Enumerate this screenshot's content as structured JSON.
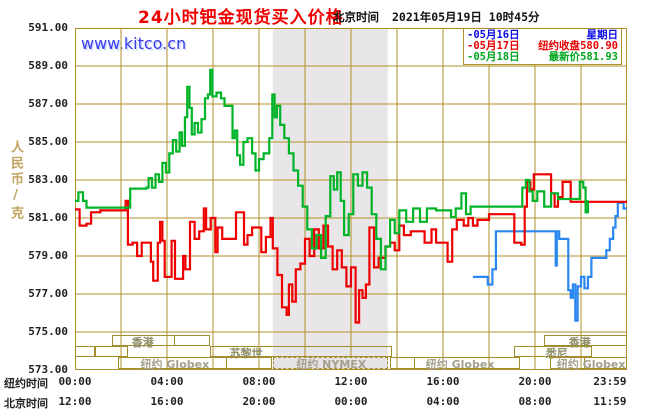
{
  "header": {
    "title": "24小时钯金现货买入价格",
    "clock_label": "北京时间",
    "clock_value": "2021年05月19日 10时45分"
  },
  "watermark": "www.kitco.cn",
  "y_axis": {
    "unit": "人民币/克",
    "labels": [
      "591.00",
      "589.00",
      "587.00",
      "585.00",
      "583.00",
      "581.00",
      "579.00",
      "577.00",
      "575.00",
      "573.00"
    ]
  },
  "x_axis": {
    "ny_label": "纽约时间",
    "bj_label": "北京时间",
    "tick_hours": [
      0,
      4,
      8,
      12,
      16,
      20,
      23.26
    ],
    "ny_ticks": [
      "00:00",
      "04:00",
      "08:00",
      "12:00",
      "16:00",
      "20:00",
      "23:59"
    ],
    "bj_ticks": [
      "12:00",
      "16:00",
      "20:00",
      "00:00",
      "04:00",
      "08:00",
      "11:59"
    ]
  },
  "legend": {
    "items": [
      {
        "dash": "-",
        "date": "05月16日",
        "desc": "星期日",
        "value": "",
        "color": "#0a0ae6"
      },
      {
        "dash": "-",
        "date": "05月17日",
        "desc": "纽约收盘",
        "value": "580.90",
        "color": "#e60000"
      },
      {
        "dash": "-",
        "date": "05月18日",
        "desc": "最新价",
        "value": "581.93",
        "color": "#00a61f"
      }
    ]
  },
  "sessions": [
    {
      "row": 1,
      "start": 1.6,
      "end": 5.87,
      "label": "香港",
      "label_at": 2.9,
      "label_color": "#8d8d66",
      "dividers": [
        4.26
      ]
    },
    {
      "row": 1,
      "start": 20.4,
      "end": 24,
      "label": "香港",
      "label_at": 21.9,
      "label_color": "#8d8d66"
    },
    {
      "row": 2,
      "start": 0,
      "end": 0.87
    },
    {
      "row": 2,
      "start": 0.87,
      "end": 2.3
    },
    {
      "row": 2,
      "start": 5.87,
      "end": 13.8,
      "label": "苏黎世",
      "label_at": 7.4,
      "label_color": "#8d8d66"
    },
    {
      "row": 2,
      "start": 19.1,
      "end": 22.5,
      "label": "悉尼",
      "label_at": 20.9,
      "label_color": "#8d8d66"
    },
    {
      "row": 3,
      "start": 1.87,
      "end": 8.57,
      "label": "纽约 Globex",
      "label_at": 4.3,
      "label_color": "#a3a08e",
      "dividers": [
        6.52
      ]
    },
    {
      "row": 3,
      "start": 8.6,
      "end": 13.6,
      "label": "纽约 NYMEX",
      "label_at": 11.1,
      "label_color": "#a3a08e",
      "fill": "#e6e3e6",
      "dashed": true
    },
    {
      "row": 3,
      "start": 13.7,
      "end": 19.35,
      "label": "纽约 Globex",
      "label_at": 16.7,
      "label_color": "#a3a08e",
      "dividers": [
        14.7
      ]
    },
    {
      "row": 3,
      "start": 20.65,
      "end": 24,
      "label": "纽约 Globex",
      "label_at": 22.4,
      "label_color": "#a3a08e",
      "dividers": [
        22.1
      ]
    }
  ],
  "chart_data": {
    "type": "line",
    "title": "24小时钯金现货买入价格",
    "xlabel": "纽约时间 (hours 0-24)",
    "ylabel": "人民币/克",
    "x_range": [
      0,
      24
    ],
    "y_range": [
      573,
      591
    ],
    "y_tick_step": 2,
    "x_grid_step_hours": 2,
    "grid": true,
    "grid_color": "#b2902c",
    "legend_position": "top-right",
    "band": {
      "from_hour": 8.6,
      "to_hour": 13.6,
      "color": "#e9e6e9",
      "note": "纽约NYMEX session shading"
    },
    "series": [
      {
        "name": "05月16日",
        "desc": "星期日",
        "color": "#2b87f0",
        "style": "step",
        "points": [
          [
            17.3,
            577.9
          ],
          [
            17.85,
            577.9
          ],
          [
            17.95,
            577.5
          ],
          [
            18.15,
            578.3
          ],
          [
            18.3,
            580.3
          ],
          [
            20.85,
            580.3
          ],
          [
            20.9,
            578.5
          ],
          [
            20.95,
            580.3
          ],
          [
            21.05,
            579.9
          ],
          [
            21.35,
            579.9
          ],
          [
            21.45,
            577.2
          ],
          [
            21.55,
            576.8
          ],
          [
            21.65,
            577.5
          ],
          [
            21.75,
            575.6
          ],
          [
            21.85,
            577.4
          ],
          [
            22.0,
            577.9
          ],
          [
            22.15,
            577.3
          ],
          [
            22.3,
            577.9
          ],
          [
            22.45,
            578.9
          ],
          [
            22.95,
            578.9
          ],
          [
            23.1,
            579.3
          ],
          [
            23.25,
            579.9
          ],
          [
            23.4,
            580.5
          ],
          [
            23.5,
            581.1
          ],
          [
            23.6,
            581.8
          ],
          [
            23.75,
            581.8
          ],
          [
            23.85,
            581.5
          ],
          [
            24.0,
            581.5
          ]
        ]
      },
      {
        "name": "05月17日",
        "desc": "纽约收盘 580.90",
        "color": "#ee0000",
        "style": "step",
        "points": [
          [
            0.0,
            581.45
          ],
          [
            0.2,
            580.6
          ],
          [
            0.5,
            580.7
          ],
          [
            0.7,
            581.3
          ],
          [
            1.1,
            581.4
          ],
          [
            2.1,
            581.4
          ],
          [
            2.2,
            581.9
          ],
          [
            2.3,
            579.6
          ],
          [
            2.5,
            579.7
          ],
          [
            2.7,
            579.0
          ],
          [
            2.9,
            579.7
          ],
          [
            3.2,
            579.7
          ],
          [
            3.3,
            578.7
          ],
          [
            3.4,
            577.7
          ],
          [
            3.6,
            579.7
          ],
          [
            3.7,
            580.8
          ],
          [
            3.8,
            579.8
          ],
          [
            3.9,
            577.9
          ],
          [
            4.1,
            577.9
          ],
          [
            4.2,
            579.8
          ],
          [
            4.35,
            577.8
          ],
          [
            4.6,
            577.8
          ],
          [
            4.7,
            579.0
          ],
          [
            4.8,
            578.3
          ],
          [
            5.0,
            580.8
          ],
          [
            5.2,
            579.9
          ],
          [
            5.4,
            580.3
          ],
          [
            5.6,
            581.5
          ],
          [
            5.7,
            580.4
          ],
          [
            5.9,
            581.0
          ],
          [
            6.1,
            579.2
          ],
          [
            6.2,
            580.5
          ],
          [
            6.4,
            579.9
          ],
          [
            6.8,
            579.9
          ],
          [
            7.0,
            581.3
          ],
          [
            7.2,
            581.3
          ],
          [
            7.35,
            579.6
          ],
          [
            7.5,
            580.1
          ],
          [
            7.7,
            580.5
          ],
          [
            7.9,
            580.5
          ],
          [
            8.1,
            579.2
          ],
          [
            8.3,
            580.0
          ],
          [
            8.5,
            581.0
          ],
          [
            8.6,
            579.4
          ],
          [
            8.8,
            578.0
          ],
          [
            9.0,
            576.3
          ],
          [
            9.2,
            575.9
          ],
          [
            9.3,
            577.5
          ],
          [
            9.45,
            576.6
          ],
          [
            9.6,
            578.3
          ],
          [
            9.8,
            578.6
          ],
          [
            10.0,
            579.9
          ],
          [
            10.2,
            579.0
          ],
          [
            10.4,
            580.4
          ],
          [
            10.6,
            579.4
          ],
          [
            10.8,
            580.6
          ],
          [
            11.0,
            579.5
          ],
          [
            11.2,
            578.3
          ],
          [
            11.4,
            579.3
          ],
          [
            11.6,
            578.4
          ],
          [
            11.8,
            577.4
          ],
          [
            12.0,
            578.4
          ],
          [
            12.2,
            575.5
          ],
          [
            12.35,
            577.2
          ],
          [
            12.5,
            576.8
          ],
          [
            12.65,
            577.5
          ],
          [
            12.8,
            580.5
          ],
          [
            13.0,
            578.4
          ],
          [
            13.2,
            578.9
          ],
          [
            13.5,
            579.5
          ],
          [
            13.7,
            579.7
          ],
          [
            13.9,
            579.3
          ],
          [
            14.1,
            580.6
          ],
          [
            14.3,
            580.1
          ],
          [
            14.6,
            580.3
          ],
          [
            15.0,
            580.3
          ],
          [
            15.2,
            579.7
          ],
          [
            15.5,
            580.4
          ],
          [
            15.7,
            579.7
          ],
          [
            16.0,
            579.7
          ],
          [
            16.2,
            578.7
          ],
          [
            16.4,
            580.4
          ],
          [
            16.6,
            580.9
          ],
          [
            16.9,
            580.6
          ],
          [
            17.1,
            581.0
          ],
          [
            17.3,
            580.6
          ],
          [
            17.5,
            580.9
          ],
          [
            18.0,
            581.2
          ],
          [
            18.9,
            581.2
          ],
          [
            19.1,
            579.7
          ],
          [
            19.4,
            579.6
          ],
          [
            19.55,
            581.6
          ],
          [
            19.65,
            582.9
          ],
          [
            19.8,
            582.5
          ],
          [
            19.95,
            583.3
          ],
          [
            20.5,
            583.3
          ],
          [
            20.7,
            582.3
          ],
          [
            20.85,
            581.6
          ],
          [
            21.0,
            582.1
          ],
          [
            21.2,
            582.9
          ],
          [
            21.4,
            582.9
          ],
          [
            21.55,
            581.85
          ],
          [
            24.0,
            581.85
          ]
        ]
      },
      {
        "name": "05月18日",
        "desc": "最新价 581.93",
        "color": "#00b428",
        "style": "step",
        "points": [
          [
            0.0,
            581.9
          ],
          [
            0.15,
            582.35
          ],
          [
            0.35,
            581.9
          ],
          [
            0.5,
            581.55
          ],
          [
            2.3,
            581.55
          ],
          [
            2.4,
            582.55
          ],
          [
            3.1,
            582.6
          ],
          [
            3.2,
            583.1
          ],
          [
            3.35,
            582.6
          ],
          [
            3.5,
            583.3
          ],
          [
            3.65,
            582.9
          ],
          [
            3.8,
            583.9
          ],
          [
            3.95,
            583.4
          ],
          [
            4.1,
            584.4
          ],
          [
            4.25,
            585.1
          ],
          [
            4.4,
            584.5
          ],
          [
            4.55,
            585.5
          ],
          [
            4.65,
            584.8
          ],
          [
            4.78,
            586.3
          ],
          [
            4.88,
            587.9
          ],
          [
            4.98,
            586.8
          ],
          [
            5.08,
            585.4
          ],
          [
            5.2,
            586.0
          ],
          [
            5.35,
            585.5
          ],
          [
            5.5,
            586.2
          ],
          [
            5.65,
            587.3
          ],
          [
            5.78,
            587.5
          ],
          [
            5.88,
            588.8
          ],
          [
            5.98,
            587.4
          ],
          [
            6.15,
            587.6
          ],
          [
            6.35,
            587.3
          ],
          [
            6.5,
            586.9
          ],
          [
            6.75,
            586.9
          ],
          [
            6.85,
            585.2
          ],
          [
            6.95,
            585.6
          ],
          [
            7.05,
            584.3
          ],
          [
            7.18,
            583.8
          ],
          [
            7.32,
            585.0
          ],
          [
            7.5,
            585.2
          ],
          [
            7.7,
            584.4
          ],
          [
            7.85,
            583.5
          ],
          [
            8.0,
            584.1
          ],
          [
            8.2,
            584.4
          ],
          [
            8.45,
            585.2
          ],
          [
            8.58,
            587.5
          ],
          [
            8.68,
            586.3
          ],
          [
            8.78,
            586.9
          ],
          [
            8.92,
            585.9
          ],
          [
            9.1,
            585.2
          ],
          [
            9.3,
            584.4
          ],
          [
            9.5,
            583.5
          ],
          [
            9.7,
            582.7
          ],
          [
            9.9,
            581.6
          ],
          [
            10.1,
            580.4
          ],
          [
            10.3,
            579.4
          ],
          [
            10.5,
            580.1
          ],
          [
            10.7,
            578.9
          ],
          [
            10.9,
            581.1
          ],
          [
            11.1,
            583.2
          ],
          [
            11.25,
            582.5
          ],
          [
            11.4,
            583.4
          ],
          [
            11.55,
            581.9
          ],
          [
            11.7,
            580.1
          ],
          [
            11.9,
            581.2
          ],
          [
            12.1,
            583.3
          ],
          [
            12.3,
            582.7
          ],
          [
            12.5,
            583.4
          ],
          [
            12.7,
            582.6
          ],
          [
            12.9,
            581.2
          ],
          [
            13.1,
            579.9
          ],
          [
            13.3,
            578.3
          ],
          [
            13.5,
            579.5
          ],
          [
            13.7,
            580.9
          ],
          [
            13.9,
            580.2
          ],
          [
            14.1,
            581.4
          ],
          [
            14.4,
            580.8
          ],
          [
            14.7,
            581.5
          ],
          [
            15.0,
            580.8
          ],
          [
            15.3,
            581.5
          ],
          [
            15.7,
            581.4
          ],
          [
            16.1,
            581.4
          ],
          [
            16.35,
            581.05
          ],
          [
            16.55,
            581.5
          ],
          [
            16.8,
            582.3
          ],
          [
            17.0,
            581.2
          ],
          [
            17.2,
            581.6
          ],
          [
            18.3,
            581.6
          ],
          [
            19.3,
            581.6
          ],
          [
            19.45,
            582.6
          ],
          [
            19.6,
            583.0
          ],
          [
            19.75,
            582.4
          ],
          [
            19.9,
            581.9
          ],
          [
            20.1,
            582.4
          ],
          [
            20.4,
            581.6
          ],
          [
            20.7,
            582.3
          ],
          [
            21.0,
            582.0
          ],
          [
            21.8,
            582.0
          ],
          [
            21.95,
            582.9
          ],
          [
            22.1,
            582.6
          ],
          [
            22.2,
            581.3
          ],
          [
            22.3,
            581.93
          ]
        ]
      }
    ]
  }
}
